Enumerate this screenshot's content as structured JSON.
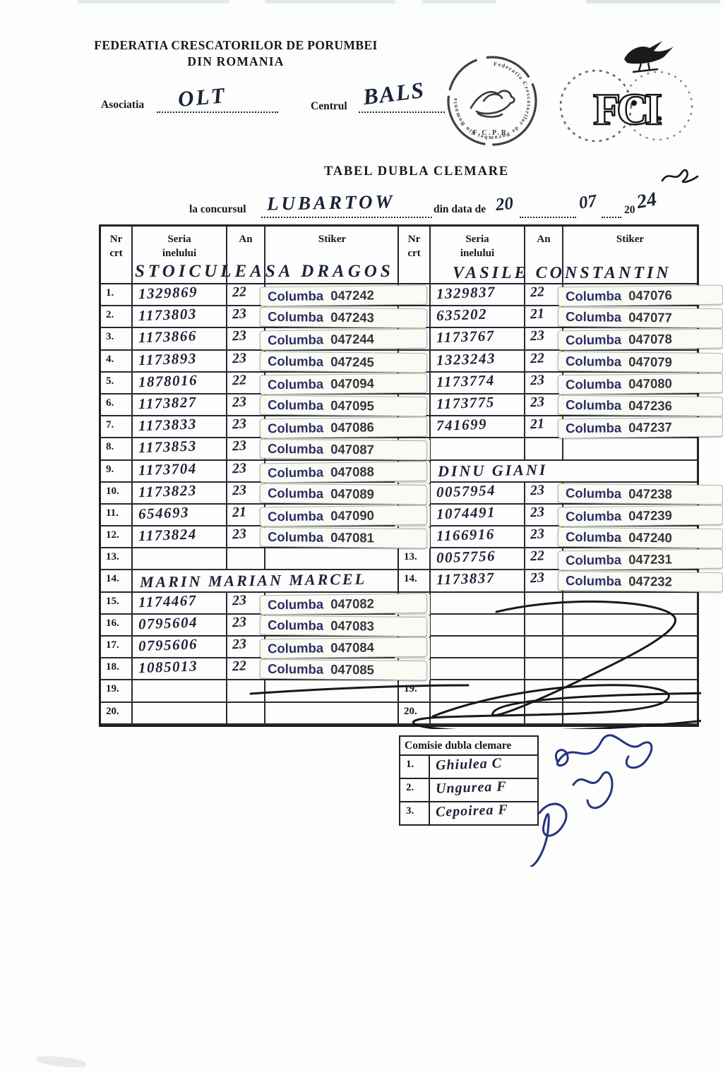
{
  "header": {
    "org_line1": "FEDERATIA CRESCATORILOR DE PORUMBEI",
    "org_line2": "DIN ROMANIA",
    "asociatia_label": "Asociatia",
    "asociatia_value": "OLT",
    "centrul_label": "Centrul",
    "centrul_value": "BALS"
  },
  "stamps": {
    "fcpr_ring_text": "Federatia Crescatorilor de Porumbei din Romania",
    "fcpr_bottom": "F.C.P.R.",
    "fci_text": "FCI"
  },
  "title": "TABEL DUBLA CLEMARE",
  "concurs": {
    "label": "la concursul",
    "value": "LUBARTOW",
    "date_label": "din data de",
    "day": "20",
    "month": "07",
    "century": "20",
    "year_suffix": "24"
  },
  "col_headers": {
    "nr_l1": "Nr",
    "nr_l2": "crt",
    "seria_l1": "Seria",
    "seria_l2": "inelului",
    "an": "An",
    "stiker": "Stiker"
  },
  "sticker_brand": "Columba",
  "left_table": {
    "owner": "STOICULEASA DRAGOS",
    "rows": [
      {
        "nr": "1.",
        "seria": "1329869",
        "an": "22",
        "sticker": "047242"
      },
      {
        "nr": "2.",
        "seria": "1173803",
        "an": "23",
        "sticker": "047243"
      },
      {
        "nr": "3.",
        "seria": "1173866",
        "an": "23",
        "sticker": "047244"
      },
      {
        "nr": "4.",
        "seria": "1173893",
        "an": "23",
        "sticker": "047245"
      },
      {
        "nr": "5.",
        "seria": "1878016",
        "an": "22",
        "sticker": "047094"
      },
      {
        "nr": "6.",
        "seria": "1173827",
        "an": "23",
        "sticker": "047095"
      },
      {
        "nr": "7.",
        "seria": "1173833",
        "an": "23",
        "sticker": "047086"
      },
      {
        "nr": "8.",
        "seria": "1173853",
        "an": "23",
        "sticker": "047087"
      },
      {
        "nr": "9.",
        "seria": "1173704",
        "an": "23",
        "sticker": "047088"
      },
      {
        "nr": "10.",
        "seria": "1173823",
        "an": "23",
        "sticker": "047089"
      },
      {
        "nr": "11.",
        "seria": "654693",
        "an": "21",
        "sticker": "047090"
      },
      {
        "nr": "12.",
        "seria": "1173824",
        "an": "23",
        "sticker": "047081"
      },
      {
        "nr": "13."
      },
      {
        "nr": "14.",
        "name_span": "MARIN MARIAN MARCEL"
      },
      {
        "nr": "15.",
        "seria": "1174467",
        "an": "23",
        "sticker": "047082"
      },
      {
        "nr": "16.",
        "seria": "0795604",
        "an": "23",
        "sticker": "047083"
      },
      {
        "nr": "17.",
        "seria": "0795606",
        "an": "23",
        "sticker": "047084"
      },
      {
        "nr": "18.",
        "seria": "1085013",
        "an": "22",
        "sticker": "047085"
      },
      {
        "nr": "19."
      },
      {
        "nr": "20."
      }
    ]
  },
  "right_table": {
    "owner": "VASILE CONSTANTIN",
    "rows": [
      {
        "nr": "1.",
        "seria": "1329837",
        "an": "22",
        "sticker": "047076"
      },
      {
        "nr": "2.",
        "seria": "635202",
        "an": "21",
        "sticker": "047077"
      },
      {
        "nr": "3.",
        "seria": "1173767",
        "an": "23",
        "sticker": "047078"
      },
      {
        "nr": "4.",
        "seria": "1323243",
        "an": "22",
        "sticker": "047079"
      },
      {
        "nr": "5.",
        "seria": "1173774",
        "an": "23",
        "sticker": "047080"
      },
      {
        "nr": "6.",
        "seria": "1173775",
        "an": "23",
        "sticker": "047236"
      },
      {
        "nr": "7.",
        "seria": "741699",
        "an": "21",
        "sticker": "047237"
      },
      {
        "nr": "8."
      },
      {
        "nr": "9.",
        "name_span": "DINU GIANI"
      },
      {
        "nr": "10.",
        "seria": "0057954",
        "an": "23",
        "sticker": "047238"
      },
      {
        "nr": "11.",
        "seria": "1074491",
        "an": "23",
        "sticker": "047239"
      },
      {
        "nr": "12.",
        "seria": "1166916",
        "an": "23",
        "sticker": "047240"
      },
      {
        "nr": "13.",
        "seria": "0057756",
        "an": "22",
        "sticker": "047231"
      },
      {
        "nr": "14.",
        "seria": "1173837",
        "an": "23",
        "sticker": "047232"
      },
      {
        "nr": "15."
      },
      {
        "nr": "16."
      },
      {
        "nr": "17."
      },
      {
        "nr": "18."
      },
      {
        "nr": "19."
      },
      {
        "nr": "20."
      }
    ]
  },
  "comisie": {
    "title": "Comisie dubla clemare",
    "rows": [
      {
        "nr": "1.",
        "name": "Ghiulea C"
      },
      {
        "nr": "2.",
        "name": "Ungurea F"
      },
      {
        "nr": "3.",
        "name": "Cepoirea F"
      }
    ]
  }
}
